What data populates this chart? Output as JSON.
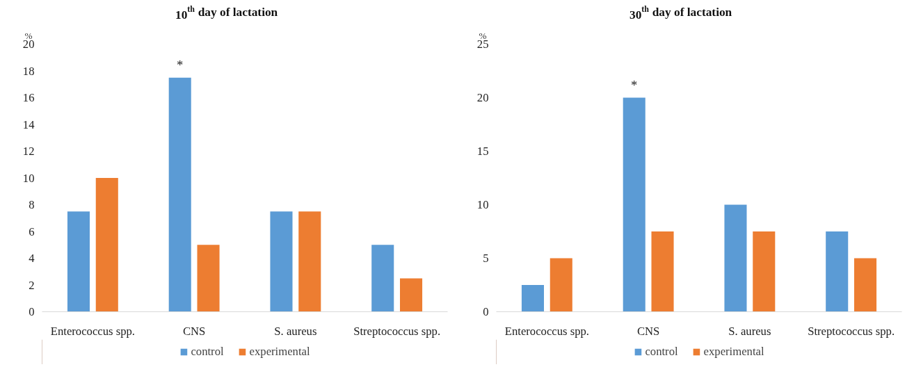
{
  "chart_data": [
    {
      "type": "bar",
      "title": "10$^{th}$ day of lactation",
      "ylabel": "%",
      "categories": [
        "Enterococcus spp.",
        "CNS",
        "S. aureus",
        "Streptococcus spp."
      ],
      "ylim": [
        0,
        20
      ],
      "yticks": [
        0,
        2,
        4,
        6,
        8,
        10,
        12,
        14,
        16,
        18,
        20
      ],
      "grid": false,
      "legend": "bottom",
      "series": [
        {
          "name": "control",
          "color": "#5b9bd5",
          "values": [
            7.5,
            17.5,
            7.5,
            5
          ]
        },
        {
          "name": "experimental",
          "color": "#ed7d31",
          "values": [
            10,
            5,
            7.5,
            2.5
          ]
        }
      ],
      "annotations": [
        {
          "text": "*",
          "x": "CNS",
          "y": 17.5
        }
      ]
    },
    {
      "type": "bar",
      "title": "30$^{th}$ day of lactation",
      "ylabel": "%",
      "categories": [
        "Enterococcus spp.",
        "CNS",
        "S. aureus",
        "Streptococcus spp."
      ],
      "ylim": [
        0,
        25
      ],
      "yticks": [
        0,
        5,
        10,
        15,
        20,
        25
      ],
      "grid": false,
      "legend": "bottom",
      "series": [
        {
          "name": "control",
          "color": "#5b9bd5",
          "values": [
            2.5,
            20,
            10,
            7.5
          ]
        },
        {
          "name": "experimental",
          "color": "#ed7d31",
          "values": [
            5,
            7.5,
            7.5,
            5
          ]
        }
      ],
      "annotations": [
        {
          "text": "*",
          "x": "CNS",
          "y": 20
        }
      ]
    }
  ]
}
